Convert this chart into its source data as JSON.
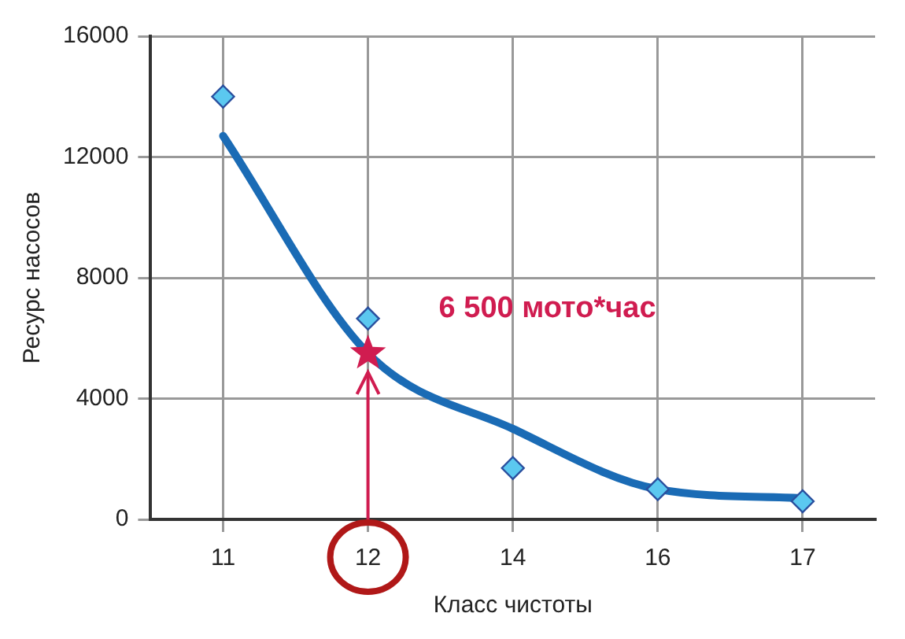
{
  "chart_data": {
    "type": "scatter",
    "xlabel": "Класс чистоты",
    "ylabel": "Ресурс насосов",
    "categories": [
      "11",
      "12",
      "14",
      "16",
      "17"
    ],
    "series": [
      {
        "color": "#5bc8f0",
        "values": [
          14000,
          6650,
          1700,
          1000,
          600
        ],
        "marker": "diamond"
      },
      {
        "type": "line",
        "color": "#1a6bb5",
        "values": [
          12700,
          5500,
          3000,
          1000,
          700
        ],
        "marker": "none"
      },
      {
        "color": "#d01c50",
        "x": [
          "12"
        ],
        "values": [
          5500
        ],
        "marker": "star"
      }
    ],
    "ylim": [
      0,
      16000
    ],
    "yticks": [
      0,
      4000,
      8000,
      12000,
      16000
    ],
    "grid": true,
    "legend": false,
    "annotations": [
      {
        "text": "6 500 мото*час",
        "x": "12",
        "y": 5500
      }
    ]
  }
}
